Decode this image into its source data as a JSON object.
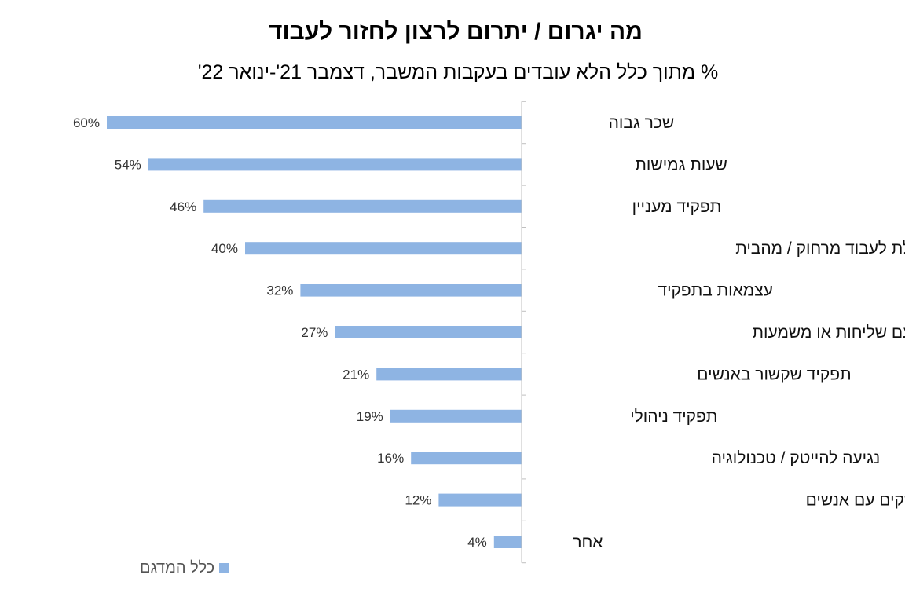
{
  "chart_data": {
    "type": "bar",
    "orientation": "horizontal",
    "title": "מה יגרום / יתרום לרצון לחזור לעבוד",
    "subtitle": "% מתוך כלל הלא עובדים בעקבות המשבר, דצמבר 21'-ינואר 22'",
    "categories": [
      "שכר גבוה",
      "שעות גמישות",
      "תפקיד מעניין",
      "יכולת לעבוד מרחוק / מהבית",
      "עצמאות בתפקיד",
      "תפקיד עם שליחות או משמעות",
      "תפקיד שקשור באנשים",
      "תפקיד ניהולי",
      "נגיעה להייטק / טכנולוגיה",
      "תפקיד שלא מחייב ממשקים עם אנשים",
      "אחר"
    ],
    "series": [
      {
        "name": "כלל המדגם",
        "values": [
          60,
          54,
          46,
          40,
          32,
          27,
          21,
          19,
          16,
          12,
          4
        ],
        "labels": [
          "60%",
          "54%",
          "46%",
          "40%",
          "32%",
          "27%",
          "21%",
          "19%",
          "16%",
          "12%",
          "4%"
        ],
        "color": "#8eb4e3"
      }
    ],
    "xlim": [
      0,
      60
    ],
    "direction": "bars extend leftward from axis on right",
    "grid": false,
    "legend_position": "bottom-left"
  },
  "colors": {
    "bar": "#8eb4e3",
    "axis": "#bfbfbf"
  }
}
